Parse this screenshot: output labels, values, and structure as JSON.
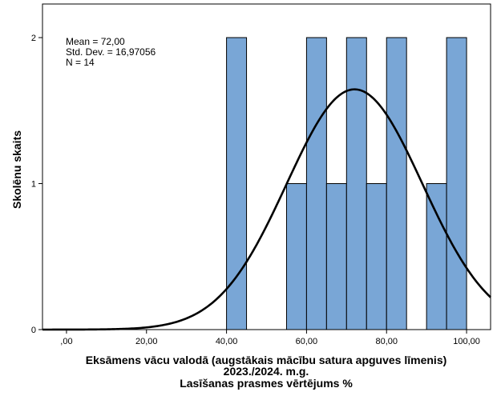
{
  "chart_data": {
    "type": "bar",
    "subtype": "histogram",
    "bins": [
      {
        "x0": 40,
        "x1": 45,
        "count": 2
      },
      {
        "x0": 55,
        "x1": 60,
        "count": 1
      },
      {
        "x0": 60,
        "x1": 65,
        "count": 2
      },
      {
        "x0": 65,
        "x1": 70,
        "count": 1
      },
      {
        "x0": 70,
        "x1": 75,
        "count": 2
      },
      {
        "x0": 75,
        "x1": 80,
        "count": 1
      },
      {
        "x0": 80,
        "x1": 85,
        "count": 2
      },
      {
        "x0": 90,
        "x1": 95,
        "count": 1
      },
      {
        "x0": 95,
        "x1": 100,
        "count": 2
      }
    ],
    "normal_curve": {
      "mean": 72.0,
      "std_dev": 16.97056,
      "n": 14,
      "bin_width": 5
    },
    "stats": {
      "mean_label": "Mean = 72,00",
      "std_label": "Std. Dev. = 16,97056",
      "n_label": "N = 14"
    },
    "xlabel": [
      "Eksāmens vācu valodā (augstākais mācību satura apguves līmenis)",
      "2023./2024. m.g.",
      "Lasīšanas prasmes vērtējums %"
    ],
    "ylabel": "Skolēnu skaits",
    "xlim": [
      -6,
      106
    ],
    "ylim": [
      0,
      2.2
    ],
    "x_ticks": [
      {
        "value": 0,
        "label": ",00"
      },
      {
        "value": 20,
        "label": "20,00"
      },
      {
        "value": 40,
        "label": "40,00"
      },
      {
        "value": 60,
        "label": "60,00"
      },
      {
        "value": 80,
        "label": "80,00"
      },
      {
        "value": 100,
        "label": "100,00"
      }
    ],
    "y_ticks": [
      {
        "value": 0,
        "label": "0"
      },
      {
        "value": 1,
        "label": "1"
      },
      {
        "value": 2,
        "label": "2"
      }
    ],
    "grid": false,
    "bar_color": "#79a6d6",
    "bar_edge_color": "#000000",
    "curve_color": "#000000"
  }
}
